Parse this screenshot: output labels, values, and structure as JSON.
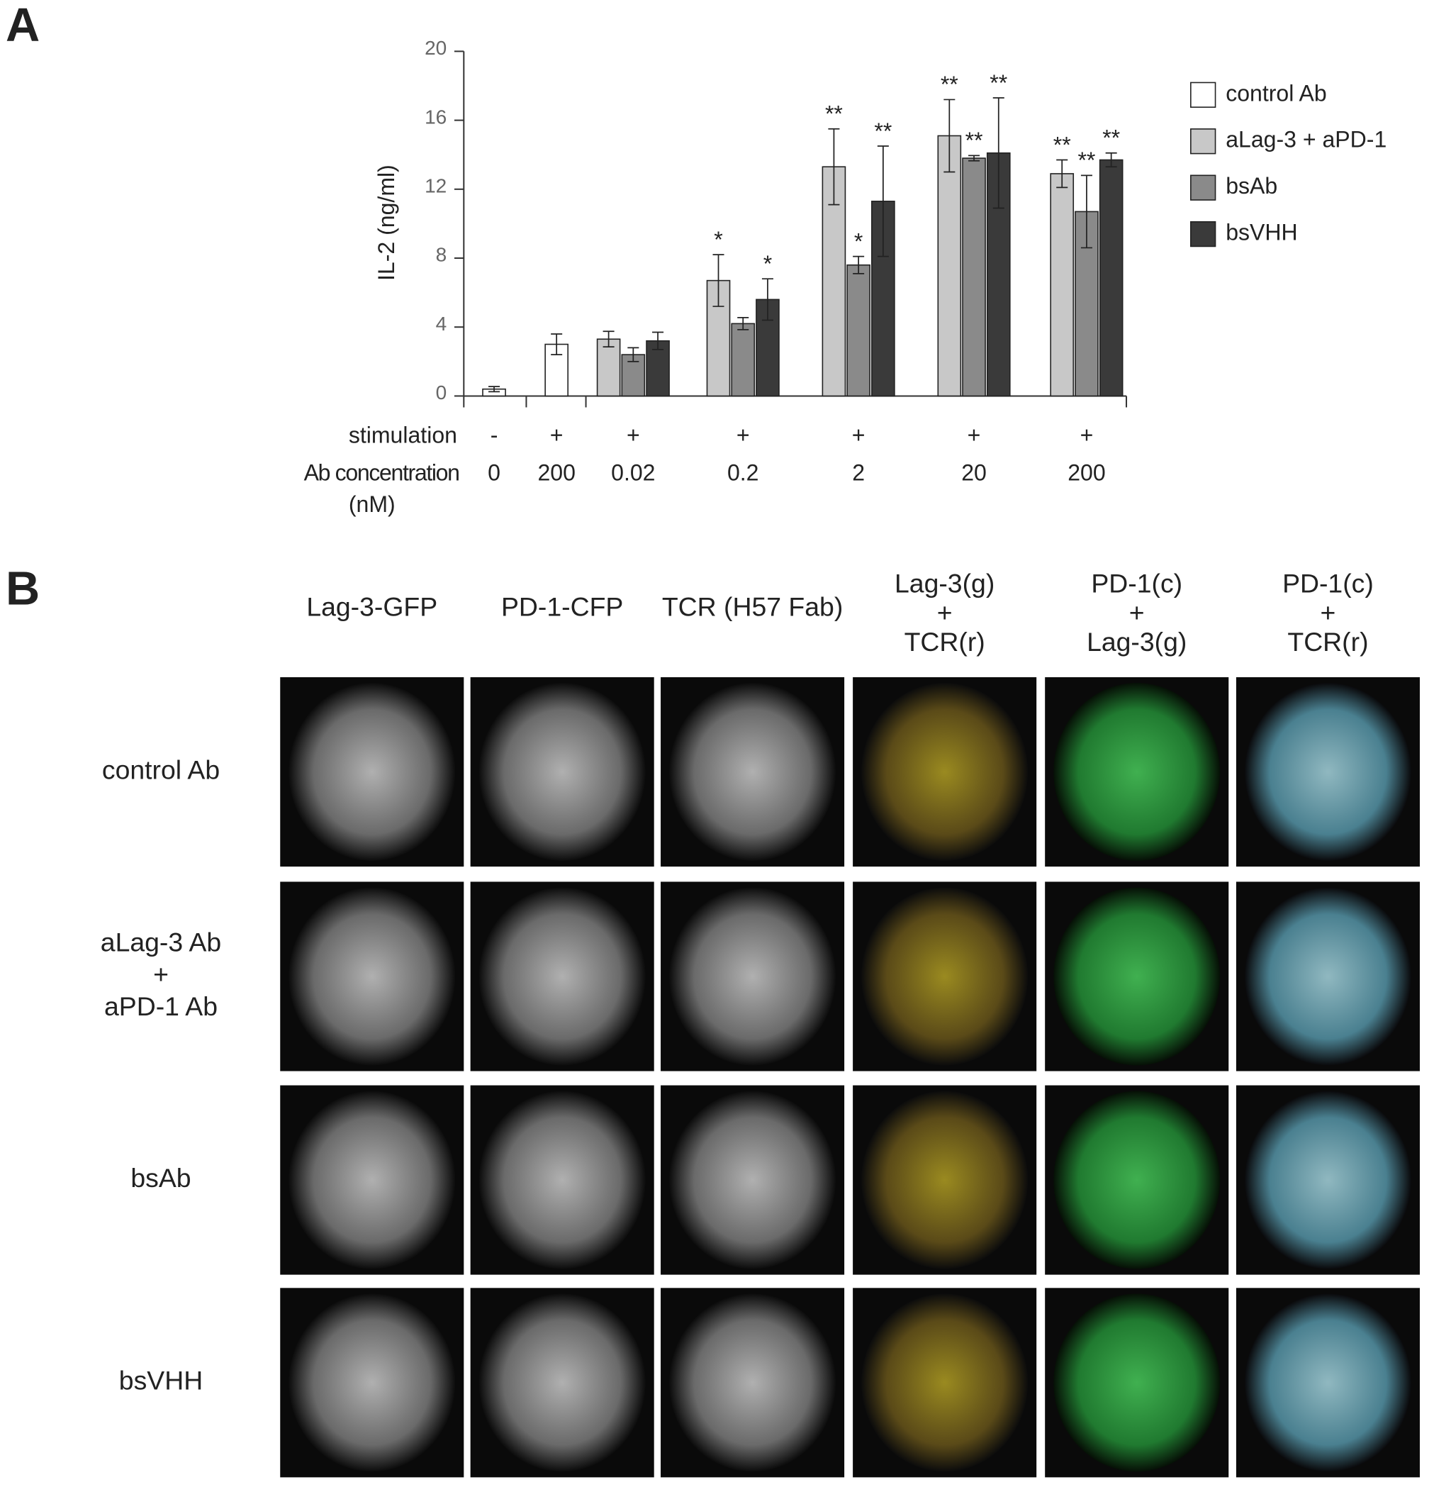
{
  "panel_a": {
    "label": "A"
  },
  "chart_data": {
    "type": "bar",
    "y_label": "IL-2 (ng/ml)",
    "categories": [
      "0",
      "200",
      "0.02",
      "0.2",
      "2",
      "20",
      "200"
    ],
    "category_row_label": [
      "Ab concentration",
      "(nM)"
    ],
    "stimulation": [
      "-",
      "+",
      "+",
      "+",
      "+",
      "+",
      "+"
    ],
    "stimulation_row_label": "stimulation",
    "ylim": [
      0,
      20
    ],
    "yticks": [
      0,
      4,
      8,
      12,
      16,
      20
    ],
    "series": [
      {
        "name": "control Ab",
        "color": "#ffffff",
        "values": [
          0.4,
          3.0,
          null,
          null,
          null,
          null,
          null
        ],
        "errors": [
          0.15,
          0.6,
          null,
          null,
          null,
          null,
          null
        ],
        "significance": [
          null,
          null,
          null,
          null,
          null,
          null,
          null
        ]
      },
      {
        "name": "aLag-3 + aPD-1",
        "color": "#c8c8c8",
        "values": [
          null,
          null,
          3.3,
          6.7,
          13.3,
          15.1,
          12.9
        ],
        "errors": [
          null,
          null,
          0.45,
          1.5,
          2.2,
          2.1,
          0.8
        ],
        "significance": [
          null,
          null,
          null,
          "*",
          "**",
          "**",
          "**"
        ]
      },
      {
        "name": "bsAb",
        "color": "#8a8a8a",
        "values": [
          null,
          null,
          2.4,
          4.2,
          7.6,
          13.8,
          10.7
        ],
        "errors": [
          null,
          null,
          0.4,
          0.35,
          0.5,
          0.15,
          2.1
        ],
        "significance": [
          null,
          null,
          null,
          null,
          "*",
          "**",
          "**"
        ]
      },
      {
        "name": "bsVHH",
        "color": "#3a3a3a",
        "values": [
          null,
          null,
          3.2,
          5.6,
          11.3,
          14.1,
          13.7
        ],
        "errors": [
          null,
          null,
          0.5,
          1.2,
          3.2,
          3.2,
          0.4
        ],
        "significance": [
          null,
          null,
          null,
          "*",
          "**",
          "**",
          "**"
        ]
      }
    ],
    "legend": "right"
  },
  "panel_b": {
    "label": "B",
    "columns": [
      [
        "Lag-3-GFP"
      ],
      [
        "PD-1-CFP"
      ],
      [
        "TCR (H57 Fab)"
      ],
      [
        "Lag-3(g)",
        "+",
        "TCR(r)"
      ],
      [
        "PD-1(c)",
        "+",
        "Lag-3(g)"
      ],
      [
        "PD-1(c)",
        "+",
        "TCR(r)"
      ]
    ],
    "rows": [
      [
        "control Ab"
      ],
      [
        "aLag-3 Ab",
        "+",
        "aPD-1 Ab"
      ],
      [
        "bsAb"
      ],
      [
        "bsVHH"
      ]
    ]
  }
}
